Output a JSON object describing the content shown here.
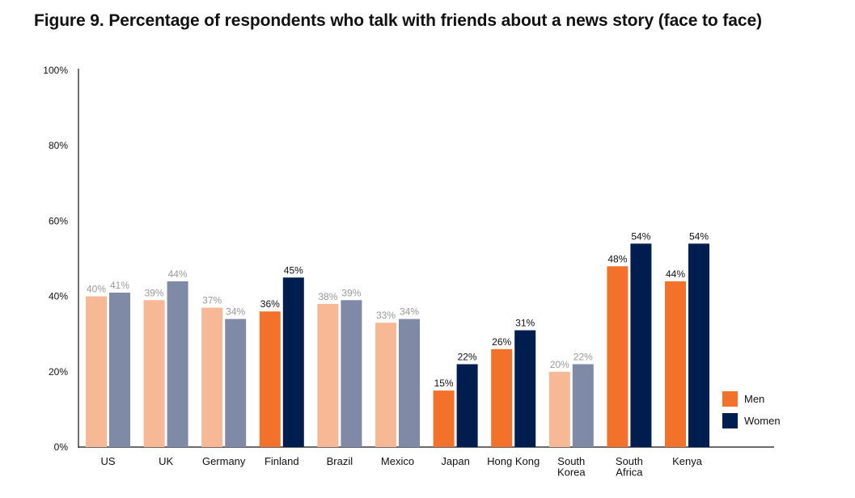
{
  "chart_data": {
    "type": "bar",
    "title": "Figure 9. Percentage of respondents who talk with friends about a news story (face to face)",
    "xlabel": "",
    "ylabel": "",
    "ylim": [
      0,
      100
    ],
    "yticks": [
      0,
      20,
      40,
      60,
      80,
      100
    ],
    "ytick_labels": [
      "0%",
      "20%",
      "40%",
      "60%",
      "80%",
      "100%"
    ],
    "grid": false,
    "legend_position": "bottom-right",
    "categories": [
      "US",
      "UK",
      "Germany",
      "Finland",
      "Brazil",
      "Mexico",
      "Japan",
      "Hong Kong",
      "South Korea",
      "South Africa",
      "Kenya"
    ],
    "category_lines": [
      [
        "US"
      ],
      [
        "UK"
      ],
      [
        "Germany"
      ],
      [
        "Finland"
      ],
      [
        "Brazil"
      ],
      [
        "Mexico"
      ],
      [
        "Japan"
      ],
      [
        "Hong Kong"
      ],
      [
        "South",
        "Korea"
      ],
      [
        "South",
        "Africa"
      ],
      [
        "Kenya"
      ]
    ],
    "highlighted": [
      false,
      false,
      false,
      true,
      false,
      false,
      true,
      true,
      false,
      true,
      true
    ],
    "series": [
      {
        "name": "Men",
        "color": "#F2722C",
        "muted_color": "#F7B895",
        "values": [
          40,
          39,
          37,
          36,
          38,
          33,
          15,
          26,
          20,
          48,
          44
        ],
        "labels": [
          "40%",
          "39%",
          "37%",
          "36%",
          "38%",
          "33%",
          "15%",
          "26%",
          "20%",
          "48%",
          "44%"
        ]
      },
      {
        "name": "Women",
        "color": "#001D50",
        "muted_color": "#7F8BA6",
        "values": [
          41,
          44,
          34,
          45,
          39,
          34,
          22,
          31,
          22,
          54,
          54
        ],
        "labels": [
          "41%",
          "44%",
          "34%",
          "45%",
          "39%",
          "34%",
          "22%",
          "31%",
          "22%",
          "54%",
          "54%"
        ]
      }
    ],
    "label_color": "#111111",
    "muted_label_color": "#999999"
  }
}
